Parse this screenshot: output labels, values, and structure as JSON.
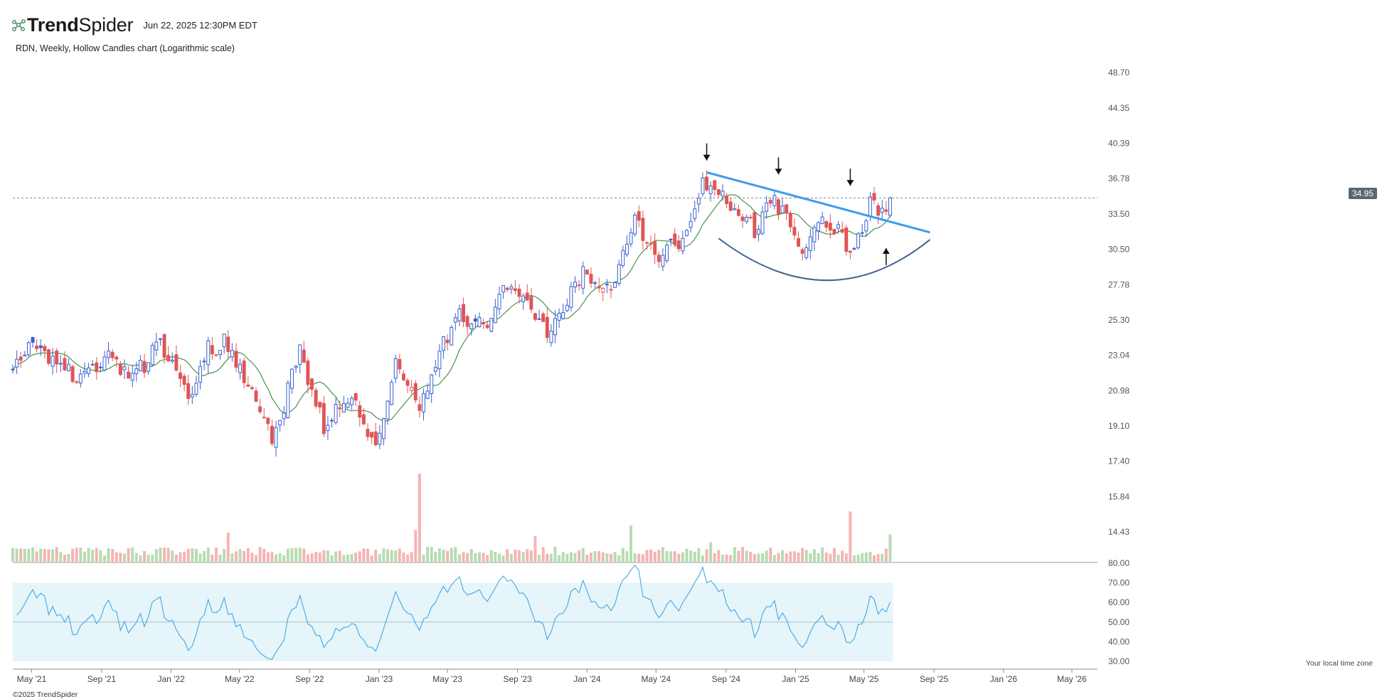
{
  "header": {
    "brand": "TrendSpider",
    "timestamp": "Jun 22, 2025 12:30PM EDT",
    "subtitle": "RDN, Weekly, Hollow Candles chart (Logarithmic scale)",
    "copyright": "©2025 TrendSpider",
    "timezone_note": "Your local time zone",
    "logo_icon": "trendspider-network-icon"
  },
  "colors": {
    "up": "#3a5fcd",
    "down": "#e05555",
    "vol_up": "#b6dcb0",
    "vol_down": "#f6b3b3",
    "ma": "#3a8a3a",
    "rsi": "#41a7e6",
    "rsi_band": "#e6f5f9",
    "trendline": "#3b9cec",
    "cup": "#3f6590",
    "last_price_tag": "#5a6670"
  },
  "chart_data": {
    "type": "candlestick",
    "symbol": "RDN",
    "interval": "Weekly",
    "style": "Hollow Candles",
    "scale": "logarithmic",
    "last_price": "34.95",
    "price_axis": {
      "ticks": [
        "48.70",
        "44.35",
        "40.39",
        "36.78",
        "33.50",
        "30.50",
        "27.78",
        "25.30",
        "23.04",
        "20.98",
        "19.10",
        "17.40",
        "15.84",
        "14.43"
      ],
      "ylim": [
        13.9,
        50.3
      ]
    },
    "rsi_axis": {
      "ticks": [
        "80.00",
        "70.00",
        "60.00",
        "50.00",
        "40.00",
        "30.00"
      ],
      "ylim": [
        30,
        80
      ],
      "band": [
        30,
        70
      ]
    },
    "x_axis": {
      "labels": [
        "May '21",
        "Sep '21",
        "Jan '22",
        "May '22",
        "Sep '22",
        "Jan '23",
        "May '23",
        "Sep '23",
        "Jan '24",
        "May '24",
        "Sep '24",
        "Jan '25",
        "May '25",
        "Sep '25",
        "Jan '26",
        "May '26"
      ],
      "start": "2021-03-29",
      "end": "2026-06-15"
    },
    "anchors": [
      {
        "date": "2021-03-29",
        "close": 22.4
      },
      {
        "date": "2021-05-03",
        "close": 23.8
      },
      {
        "date": "2021-06-14",
        "close": 22.5
      },
      {
        "date": "2021-08-02",
        "close": 21.6
      },
      {
        "date": "2021-09-13",
        "close": 23.2
      },
      {
        "date": "2021-10-25",
        "close": 21.5
      },
      {
        "date": "2021-12-13",
        "close": 24.0
      },
      {
        "date": "2022-01-31",
        "close": 20.5
      },
      {
        "date": "2022-03-07",
        "close": 23.4
      },
      {
        "date": "2022-04-04",
        "close": 23.8
      },
      {
        "date": "2022-05-23",
        "close": 21.2
      },
      {
        "date": "2022-06-27",
        "close": 18.3
      },
      {
        "date": "2022-08-15",
        "close": 23.2
      },
      {
        "date": "2022-09-26",
        "close": 19.2
      },
      {
        "date": "2022-11-14",
        "close": 20.8
      },
      {
        "date": "2022-12-26",
        "close": 18.2
      },
      {
        "date": "2023-01-30",
        "close": 22.8
      },
      {
        "date": "2023-03-13",
        "close": 20.4
      },
      {
        "date": "2023-05-15",
        "close": 25.6
      },
      {
        "date": "2023-07-03",
        "close": 24.8
      },
      {
        "date": "2023-08-14",
        "close": 27.6
      },
      {
        "date": "2023-10-23",
        "close": 24.6
      },
      {
        "date": "2023-12-25",
        "close": 28.7
      },
      {
        "date": "2024-02-12",
        "close": 27.2
      },
      {
        "date": "2024-03-25",
        "close": 33.0
      },
      {
        "date": "2024-04-29",
        "close": 30.1
      },
      {
        "date": "2024-06-10",
        "close": 31.0
      },
      {
        "date": "2024-07-22",
        "close": 36.2
      },
      {
        "date": "2024-09-02",
        "close": 34.9
      },
      {
        "date": "2024-10-21",
        "close": 32.0
      },
      {
        "date": "2024-11-25",
        "close": 35.0
      },
      {
        "date": "2025-01-13",
        "close": 30.6
      },
      {
        "date": "2025-02-17",
        "close": 33.6
      },
      {
        "date": "2025-04-07",
        "close": 30.5
      },
      {
        "date": "2025-05-12",
        "close": 34.2
      },
      {
        "date": "2025-06-02",
        "close": 33.6
      },
      {
        "date": "2025-06-16",
        "close": 34.95
      }
    ],
    "volume_spikes": [
      {
        "date": "2023-03-13",
        "rel": 1.0
      },
      {
        "date": "2023-03-06",
        "rel": 0.36
      },
      {
        "date": "2025-04-07",
        "rel": 0.57
      },
      {
        "date": "2024-03-18",
        "rel": 0.41
      },
      {
        "date": "2025-06-16",
        "rel": 0.31
      },
      {
        "date": "2023-10-02",
        "rel": 0.29
      },
      {
        "date": "2022-04-11",
        "rel": 0.33
      },
      {
        "date": "2024-08-05",
        "rel": 0.22
      }
    ],
    "annotations": {
      "resistance_line": [
        {
          "date": "2024-07-29",
          "price": 37.4
        },
        {
          "date": "2025-08-25",
          "price": 31.9
        }
      ],
      "cup_curve": {
        "start": {
          "date": "2024-08-19",
          "price": 31.4
        },
        "bottom": {
          "date": "2025-02-24",
          "price": 28.1
        },
        "end": {
          "date": "2025-08-25",
          "price": 31.3
        }
      },
      "down_arrows": [
        {
          "date": "2024-07-29",
          "price": 38.6
        },
        {
          "date": "2024-12-02",
          "price": 37.2
        },
        {
          "date": "2025-04-07",
          "price": 36.1
        }
      ],
      "up_arrows": [
        {
          "date": "2025-06-09",
          "price": 30.6
        }
      ]
    }
  }
}
